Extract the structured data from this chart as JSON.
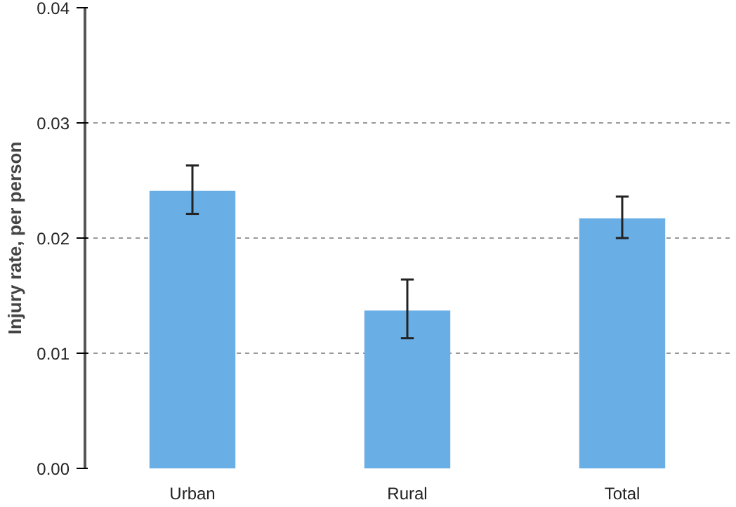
{
  "chart_data": {
    "type": "bar",
    "ylabel": "Injury rate, per person",
    "categories": [
      "Urban",
      "Rural",
      "Total"
    ],
    "values": [
      0.0241,
      0.0137,
      0.0217
    ],
    "errors": [
      [
        0.0221,
        0.0263
      ],
      [
        0.0113,
        0.0164
      ],
      [
        0.02,
        0.0236
      ]
    ],
    "color": "#6aaee6",
    "ylim": [
      0,
      0.04
    ],
    "yticks": [
      "0.00",
      0.01,
      0.02,
      0.03,
      0.04
    ],
    "grid": "y"
  }
}
